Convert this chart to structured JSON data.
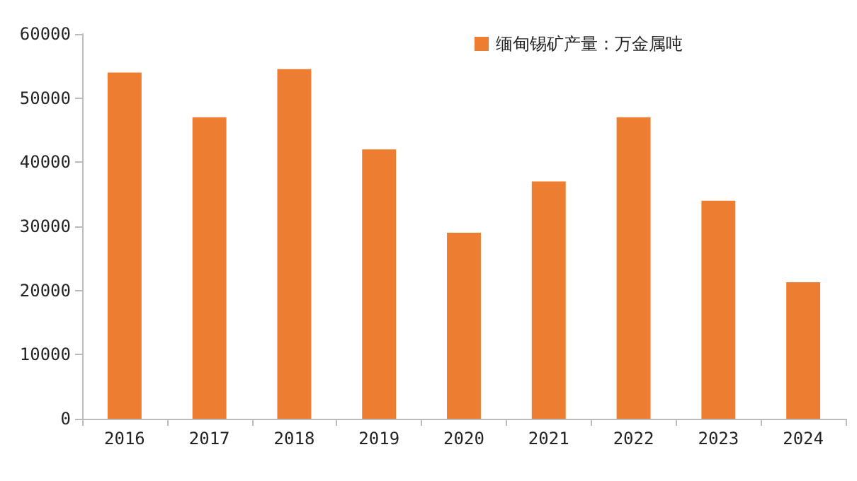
{
  "chart_data": {
    "type": "bar",
    "categories": [
      "2016",
      "2017",
      "2018",
      "2019",
      "2020",
      "2021",
      "2022",
      "2023",
      "2024"
    ],
    "series": [
      {
        "name": "缅甸锡矿产量：万金属吨",
        "color": "#ed7d31",
        "values": [
          54000,
          47000,
          54500,
          42000,
          29000,
          37000,
          47000,
          34000,
          21300
        ]
      }
    ],
    "ylim": [
      0,
      60000
    ],
    "yticks": [
      0,
      10000,
      20000,
      30000,
      40000,
      50000,
      60000
    ],
    "grid": false,
    "legend": "top right"
  }
}
